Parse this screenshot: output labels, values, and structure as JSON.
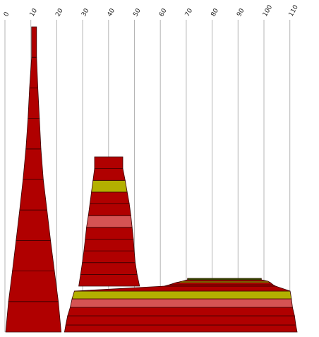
{
  "chart_data": {
    "type": "area",
    "orientation": "stacked-bands",
    "xlim": [
      0,
      113
    ],
    "ticks": [
      "0",
      "10",
      "20",
      "30",
      "40",
      "50",
      "60",
      "70",
      "80",
      "90",
      "100",
      "110"
    ],
    "tick_values": [
      0,
      10,
      20,
      30,
      40,
      50,
      60,
      70,
      80,
      90,
      100,
      110
    ],
    "grid": true,
    "colors": {
      "red": "#b00000",
      "pink": "#d55353",
      "olive": "#b3b000",
      "green": "#2a6b00",
      "outline": "#3a0000"
    },
    "shapes": [
      {
        "name": "tower-1",
        "bands": [
          {
            "x0": 0.3,
            "x1": 21.7,
            "color": "red"
          },
          {
            "x0": 1.4,
            "x1": 20.6,
            "color": "red"
          },
          {
            "x0": 2.9,
            "x1": 19.1,
            "color": "red"
          },
          {
            "x0": 4.3,
            "x1": 17.6,
            "color": "red"
          },
          {
            "x0": 5.7,
            "x1": 16.2,
            "color": "red"
          },
          {
            "x0": 7.0,
            "x1": 14.8,
            "color": "red"
          },
          {
            "x0": 8.1,
            "x1": 13.9,
            "color": "red"
          },
          {
            "x0": 8.9,
            "x1": 13.3,
            "color": "red"
          },
          {
            "x0": 9.5,
            "x1": 12.7,
            "color": "red"
          },
          {
            "x0": 10.3,
            "x1": 12.2,
            "color": "red"
          }
        ]
      },
      {
        "name": "tower-2",
        "bands": [
          {
            "x0": 28.5,
            "x1": 52.0,
            "color": "red"
          },
          {
            "x0": 29.2,
            "x1": 51.0,
            "color": "red"
          },
          {
            "x0": 29.9,
            "x1": 50.3,
            "color": "red"
          },
          {
            "x0": 30.5,
            "x1": 49.9,
            "color": "red"
          },
          {
            "x0": 31.0,
            "x1": 49.6,
            "color": "red"
          },
          {
            "x0": 31.5,
            "x1": 49.1,
            "color": "pink"
          },
          {
            "x0": 32.2,
            "x1": 48.6,
            "color": "red"
          },
          {
            "x0": 32.8,
            "x1": 48.0,
            "color": "red"
          },
          {
            "x0": 33.4,
            "x1": 47.2,
            "color": "olive"
          },
          {
            "x0": 34.0,
            "x1": 46.4,
            "color": "red"
          },
          {
            "x0": 34.6,
            "x1": 45.5,
            "color": "red"
          }
        ]
      },
      {
        "name": "ridge",
        "bands": [
          {
            "x0": 23.0,
            "x1": 112.8,
            "color": "red"
          },
          {
            "x0": 23.5,
            "x1": 112.3,
            "color": "red"
          },
          {
            "x0": 24.2,
            "x1": 111.8,
            "color": "red"
          },
          {
            "x0": 25.2,
            "x1": 111.0,
            "color": "pink"
          },
          {
            "x0": 25.9,
            "x1": 110.6,
            "color": "olive"
          },
          {
            "x0": 26.8,
            "x1": 110.1,
            "color": "red"
          },
          {
            "x0": 61.5,
            "x1": 104.5,
            "color": "red"
          },
          {
            "x0": 63.5,
            "x1": 103.5,
            "color": "red"
          },
          {
            "x0": 66.0,
            "x1": 102.5,
            "color": "olive"
          },
          {
            "x0": 68.5,
            "x1": 101.5,
            "color": "red"
          },
          {
            "x0": 70.5,
            "x1": 99.0,
            "color": "green"
          }
        ]
      }
    ]
  }
}
